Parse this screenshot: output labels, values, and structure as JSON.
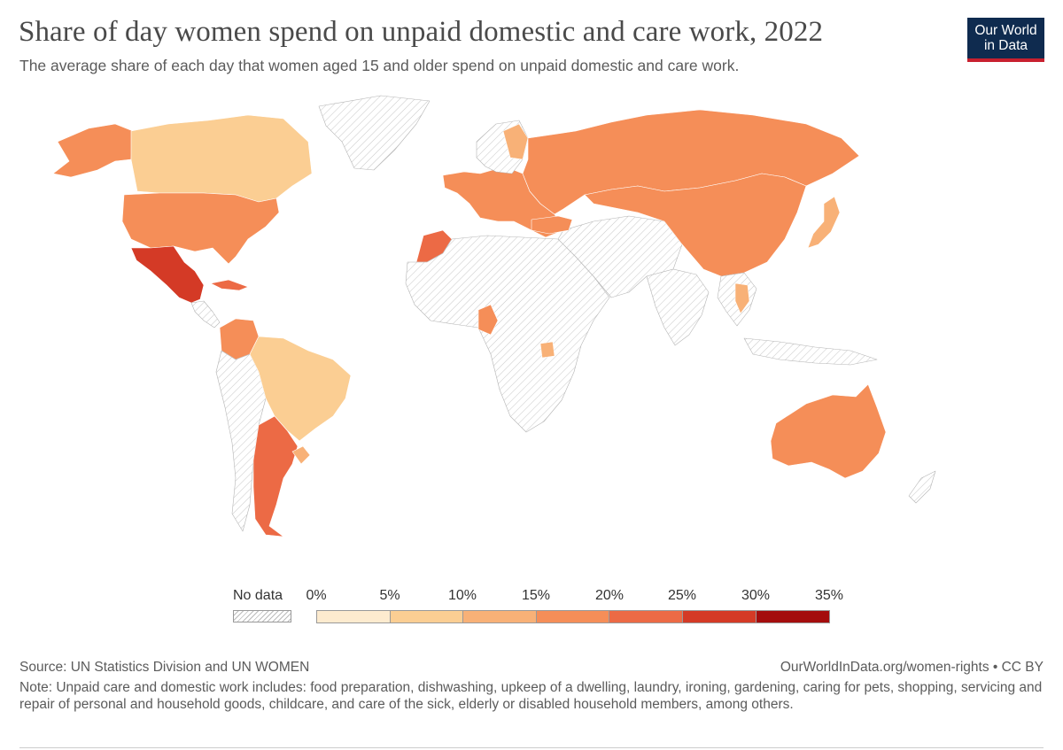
{
  "header": {
    "title": "Share of day women spend on unpaid domestic and care work, 2022",
    "subtitle": "The average share of each day that women aged 15 and older spend on unpaid domestic and care work."
  },
  "logo": {
    "line1": "Our World",
    "line2": "in Data",
    "bg": "#0f2b4f",
    "accent": "#c8202f"
  },
  "legend": {
    "no_data_label": "No data",
    "ticks": [
      "0%",
      "5%",
      "10%",
      "15%",
      "20%",
      "25%",
      "30%",
      "35%"
    ],
    "bin_colors": [
      "#fdebcf",
      "#fbce93",
      "#f8b177",
      "#f58e58",
      "#ec6a45",
      "#d43a26",
      "#a40d0d"
    ]
  },
  "colors": {
    "bin_5_10": "#fbce93",
    "bin_10_15": "#f8b177",
    "bin_15_20": "#f58e58",
    "bin_20_25": "#ec6a45",
    "bin_25_30": "#d43a26",
    "no_data_fill": "#f4f4f4",
    "border": "#ffffff"
  },
  "footer": {
    "source": "Source: UN Statistics Division and UN WOMEN",
    "credit": "OurWorldInData.org/women-rights • CC BY",
    "note": "Note: Unpaid care and domestic work includes: food preparation, dishwashing, upkeep of a dwelling, laundry, ironing, gardening, caring for pets, shopping, servicing and repair of personal and household goods, childcare, and care of the sick, elderly or disabled household members, among others."
  }
}
